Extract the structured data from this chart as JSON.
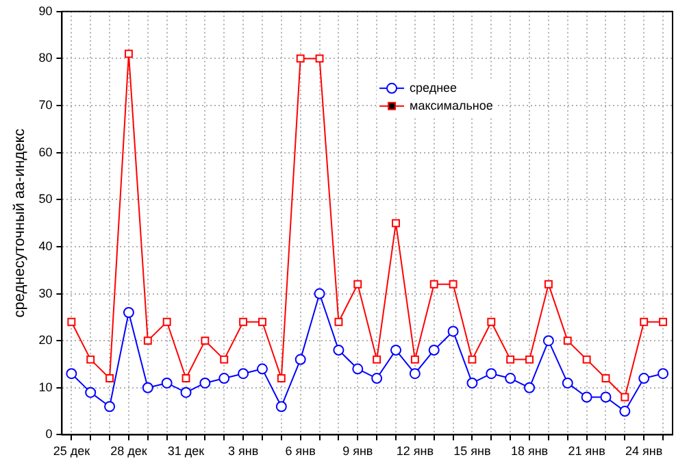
{
  "chart_data": {
    "type": "line",
    "ylabel": "среднесуточный aa-индекс",
    "categories": [
      "25 дек",
      null,
      null,
      "28 дек",
      null,
      null,
      "31 дек",
      null,
      null,
      "3 янв",
      null,
      null,
      "6 янв",
      null,
      null,
      "9 янв",
      null,
      null,
      "12 янв",
      null,
      null,
      "15 янв",
      null,
      null,
      "18 янв",
      null,
      null,
      "21 янв",
      null,
      null,
      "24 янв",
      null
    ],
    "series": [
      {
        "name": "среднее",
        "color": "#0000ff",
        "values": [
          13,
          9,
          6,
          26,
          10,
          11,
          9,
          11,
          12,
          13,
          14,
          6,
          16,
          30,
          18,
          14,
          12,
          18,
          13,
          18,
          22,
          11,
          13,
          12,
          10,
          20,
          11,
          8,
          8,
          5,
          12,
          13
        ]
      },
      {
        "name": "максимальное",
        "color": "#ff0000",
        "marker": "square",
        "values": [
          24,
          16,
          12,
          81,
          20,
          24,
          12,
          20,
          16,
          24,
          24,
          12,
          80,
          80,
          24,
          32,
          16,
          45,
          16,
          32,
          32,
          16,
          24,
          16,
          16,
          32,
          20,
          16,
          12,
          8,
          24,
          24
        ]
      }
    ],
    "ylim": [
      0,
      90
    ],
    "yticks": [
      0,
      10,
      20,
      30,
      40,
      50,
      60,
      70,
      80,
      90
    ],
    "grid": true,
    "legend": "top",
    "marker": "circle",
    "line_style": "solid"
  }
}
